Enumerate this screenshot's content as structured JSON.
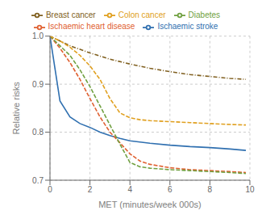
{
  "chart_data": {
    "type": "line",
    "xlabel": "MET (minutes/week 000s)",
    "ylabel": "Relative risks",
    "xlim": [
      0,
      10
    ],
    "ylim": [
      0.7,
      1.0
    ],
    "xticks": [
      0,
      2,
      4,
      6,
      8,
      10
    ],
    "yticks": [
      0.7,
      0.8,
      0.9,
      {
        "value": 1.0,
        "label": "1.0"
      }
    ],
    "grid": true,
    "legend": "top",
    "series": [
      {
        "name": "Ischaemic stroke",
        "color": "#3070b0",
        "line_style": "solid",
        "x": [
          0,
          0.5,
          1.0,
          1.5,
          2.0,
          2.5,
          3.0,
          3.5,
          4.0,
          5.0,
          6.0,
          7.0,
          8.0,
          9.0,
          9.8
        ],
        "values": [
          1.0,
          0.865,
          0.832,
          0.818,
          0.81,
          0.8,
          0.793,
          0.787,
          0.782,
          0.777,
          0.773,
          0.77,
          0.768,
          0.765,
          0.762
        ]
      },
      {
        "name": "Ischaemic heart disease",
        "color": "#e06030",
        "line_style": "dashed",
        "x": [
          0,
          0.5,
          1.0,
          1.5,
          2.0,
          2.5,
          3.0,
          3.5,
          4.0,
          4.5,
          5.0,
          6.0,
          7.0,
          8.0,
          9.0,
          9.8
        ],
        "values": [
          1.0,
          0.975,
          0.945,
          0.91,
          0.87,
          0.832,
          0.8,
          0.778,
          0.755,
          0.74,
          0.733,
          0.726,
          0.722,
          0.72,
          0.718,
          0.716
        ]
      },
      {
        "name": "Diabetes",
        "color": "#70a040",
        "line_style": "dashed",
        "x": [
          0,
          0.5,
          1.0,
          1.5,
          2.0,
          2.5,
          3.0,
          3.5,
          4.0,
          4.5,
          5.0,
          6.0,
          7.0,
          8.0,
          9.0,
          9.8
        ],
        "values": [
          1.0,
          0.98,
          0.96,
          0.93,
          0.895,
          0.855,
          0.815,
          0.775,
          0.737,
          0.728,
          0.725,
          0.722,
          0.72,
          0.718,
          0.716,
          0.714
        ]
      },
      {
        "name": "Breast cancer",
        "color": "#806020",
        "line_style": "dashdot",
        "x": [
          0,
          1.0,
          2.0,
          3.0,
          4.0,
          5.0,
          6.0,
          7.0,
          8.0,
          9.0,
          9.8
        ],
        "values": [
          1.0,
          0.98,
          0.965,
          0.952,
          0.942,
          0.933,
          0.926,
          0.92,
          0.916,
          0.912,
          0.91
        ]
      },
      {
        "name": "Colon cancer",
        "color": "#e0a020",
        "line_style": "dashed",
        "x": [
          0,
          0.5,
          1.0,
          1.5,
          2.0,
          2.5,
          3.0,
          3.5,
          4.0,
          4.5,
          5.0,
          6.0,
          7.0,
          8.0,
          9.0,
          9.8
        ],
        "values": [
          1.0,
          0.99,
          0.977,
          0.96,
          0.938,
          0.91,
          0.87,
          0.84,
          0.83,
          0.826,
          0.824,
          0.822,
          0.82,
          0.818,
          0.816,
          0.815
        ]
      }
    ]
  }
}
